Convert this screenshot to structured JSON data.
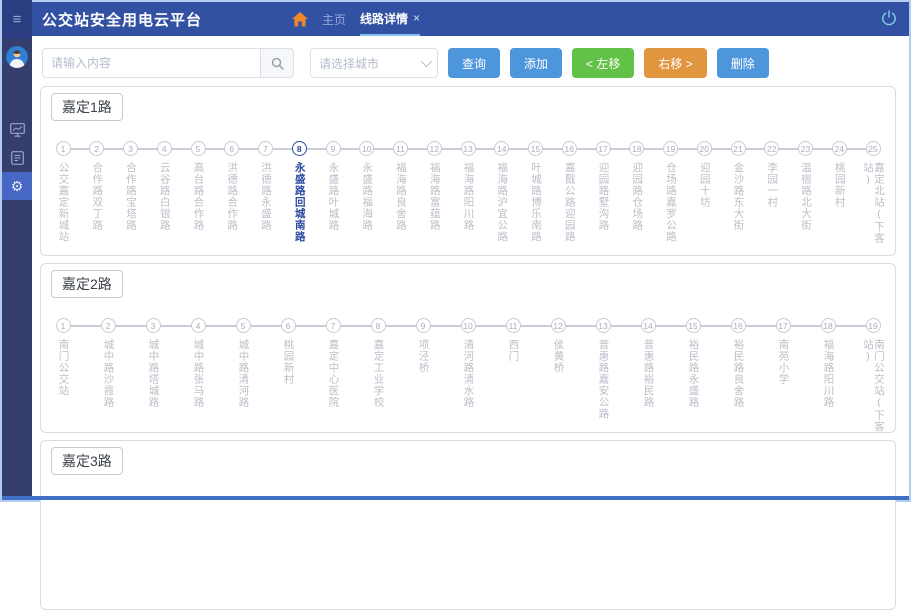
{
  "header": {
    "title": "公交站安全用电云平台",
    "tabs": [
      {
        "label": "主页",
        "active": false
      },
      {
        "label": "线路详情",
        "active": true
      }
    ]
  },
  "icons": {
    "hamburger": "≡",
    "close": "×",
    "gear": "⚙"
  },
  "toolbar": {
    "search_placeholder": "请输入内容",
    "city_placeholder": "请选择城市",
    "buttons": {
      "query": "查询",
      "add": "添加",
      "move_left": "<  左移",
      "move_right": "右移  >",
      "delete": "删除"
    }
  },
  "routes": [
    {
      "name": "嘉定1路",
      "active_stop": 8,
      "stops": [
        "公交嘉定新城站",
        "合作路双丁路",
        "合作路宝塔路",
        "云谷路白银路",
        "高台路合作路",
        "洪德路合作路",
        "洪德路永盛路",
        "永盛路回城南路",
        "永盛路叶城路",
        "永盛路福海路",
        "福海路良舍路",
        "福海路富蕴路",
        "福海路阳川路",
        "福海路沪宜公路",
        "叶城路博乐南路",
        "嘉戬公路迎园路",
        "迎园路墅沟路",
        "迎园路仓场路",
        "仓场路嘉罗公路",
        "迎园十坊",
        "金沙路东大街",
        "李园一村",
        "温宿路北大街",
        "桃园新村",
        "嘉定北站(下客站)"
      ]
    },
    {
      "name": "嘉定2路",
      "active_stop": 0,
      "stops": [
        "南门公交站",
        "城中路沙霞路",
        "城中路塔城路",
        "城中路张马路",
        "城中路清河路",
        "桃园新村",
        "嘉定中心医院",
        "嘉定工业学校",
        "项泾桥",
        "清河路清水路",
        "西门",
        "侯黄桥",
        "普惠路嘉安公路",
        "普惠路裕民路",
        "裕民路永盛路",
        "裕民路良舍路",
        "南苑小学",
        "福海路阳川路",
        "南门公交站(下客站)"
      ]
    },
    {
      "name": "嘉定3路",
      "active_stop": 0,
      "stops": []
    }
  ]
}
